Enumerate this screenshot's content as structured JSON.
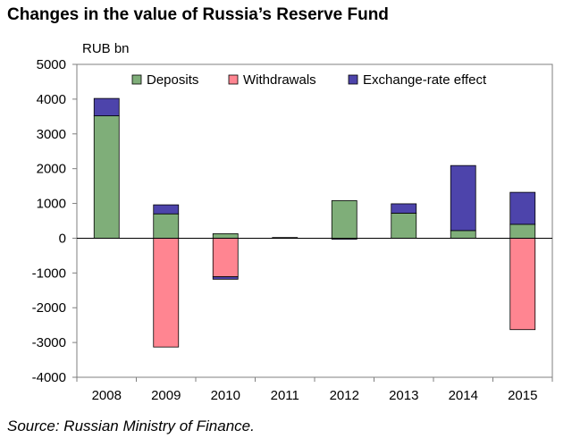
{
  "chart_data": {
    "type": "bar",
    "stacked": true,
    "title": "Changes in the value of Russia’s Reserve Fund",
    "ylabel": "RUB bn",
    "ylim": [
      -4000,
      5000
    ],
    "yticks": [
      5000,
      4000,
      3000,
      2000,
      1000,
      0,
      -1000,
      -2000,
      -3000,
      -4000
    ],
    "categories": [
      "2008",
      "2009",
      "2010",
      "2011",
      "2012",
      "2013",
      "2014",
      "2015"
    ],
    "series": [
      {
        "name": "Deposits",
        "color": "#7fae79",
        "values": [
          3520,
          700,
          130,
          0,
          1080,
          720,
          220,
          400
        ]
      },
      {
        "name": "Withdrawals",
        "color": "#ff8591",
        "values": [
          0,
          -3130,
          -1110,
          0,
          0,
          0,
          0,
          -2630
        ]
      },
      {
        "name": "Exchange-rate effect",
        "color": "#4d44ab",
        "values": [
          500,
          260,
          -70,
          20,
          -30,
          270,
          1870,
          920
        ]
      }
    ],
    "legend": "top",
    "grid": false,
    "source": "Source: Russian Ministry of Finance."
  }
}
